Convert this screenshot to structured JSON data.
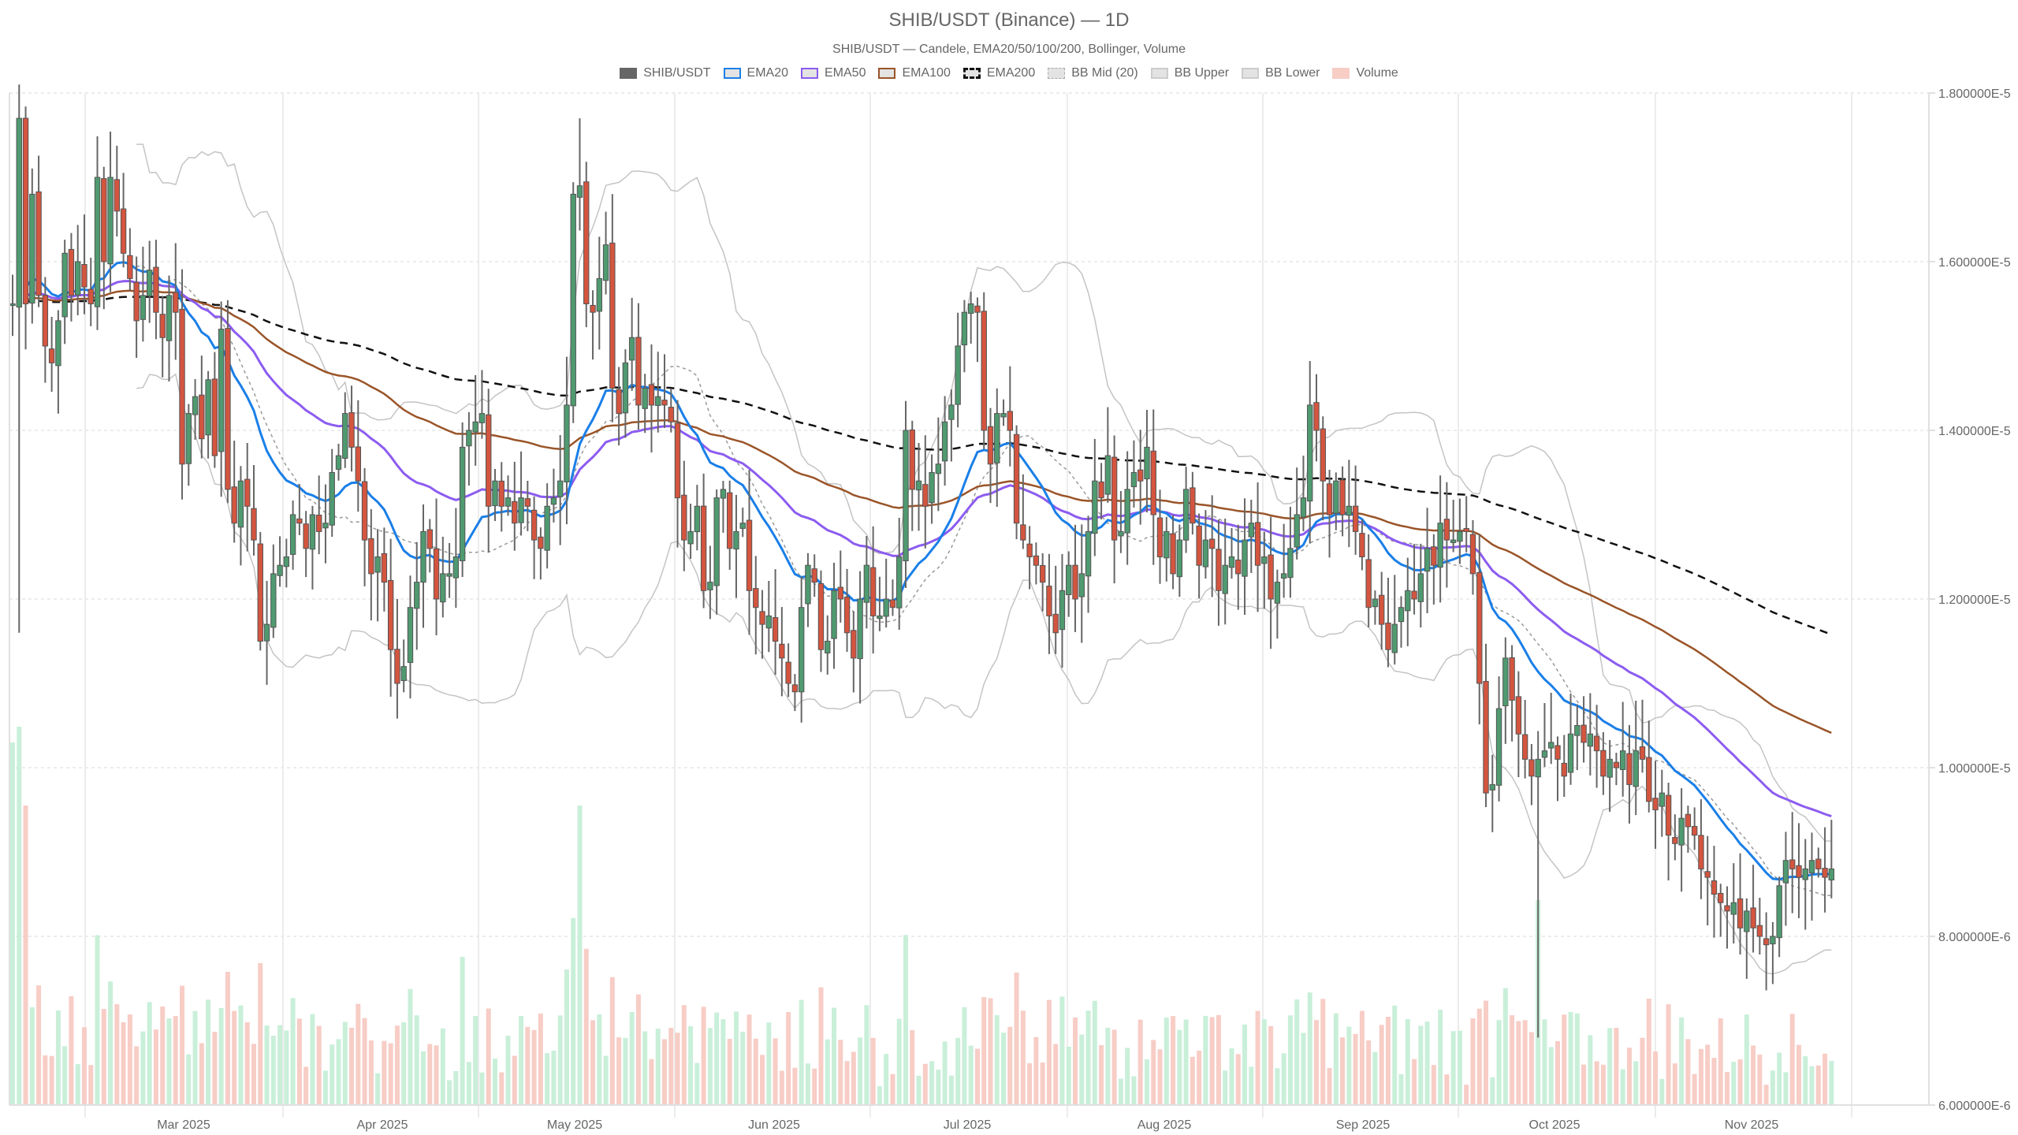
{
  "title": "SHIB/USDT (Binance) — 1D",
  "subtitle": "SHIB/USDT — Candele, EMA20/50/100/200, Bollinger, Volume",
  "legend": [
    {
      "label": "SHIB/USDT",
      "style": "solid-fill",
      "fill": "#666666",
      "border": "#666666"
    },
    {
      "label": "EMA20",
      "style": "solid",
      "fill": "#e3e3e3",
      "border": "#1a7fe8"
    },
    {
      "label": "EMA50",
      "style": "solid",
      "fill": "#e3e3e3",
      "border": "#8c5cf0"
    },
    {
      "label": "EMA100",
      "style": "solid",
      "fill": "#e3e3e3",
      "border": "#9a5428"
    },
    {
      "label": "EMA200",
      "style": "dashed",
      "fill": "#e3e3e3",
      "border": "#111111"
    },
    {
      "label": "BB Mid (20)",
      "style": "dotted",
      "fill": "#e3e3e3",
      "border": "#aaaaaa"
    },
    {
      "label": "BB Upper",
      "style": "solid",
      "fill": "#e3e3e3",
      "border": "#cccccc"
    },
    {
      "label": "BB Lower",
      "style": "solid",
      "fill": "#e3e3e3",
      "border": "#cccccc"
    },
    {
      "label": "Volume",
      "style": "solid-fill",
      "fill": "#f7cdc6",
      "border": "#f7cdc6"
    }
  ],
  "colors": {
    "up": "#4f9a70",
    "down": "#d4553f",
    "wick": "#666666",
    "ema20": "#1a7fe8",
    "ema50": "#8c5cf0",
    "ema100": "#9a5428",
    "ema200": "#111111",
    "bb_mid": "#999999",
    "bb_band": "#c4c4c4",
    "vol_up": "#c9efd9",
    "vol_down": "#f7cdc6",
    "grid": "#e0e0e0",
    "axis_text": "#666666"
  },
  "chart_data": {
    "type": "candlestick",
    "title": "SHIB/USDT (Binance) — 1D",
    "subtitle": "SHIB/USDT — Candele, EMA20/50/100/200, Bollinger, Volume",
    "xlabel": "",
    "ylabel": "",
    "y_axis_position": "right",
    "ylim": [
      6e-06,
      1.8e-05
    ],
    "y_ticks": [
      "1.800000E-5",
      "1.600000E-5",
      "1.400000E-5",
      "1.200000E-5",
      "1.000000E-5",
      "8.000000E-6",
      "6.000000E-6"
    ],
    "y_tick_values": [
      1.8e-05,
      1.6e-05,
      1.4e-05,
      1.2e-05,
      1e-05,
      8e-06,
      6e-06
    ],
    "x_ticks": [
      "Mar 2025",
      "Apr 2025",
      "May 2025",
      "Jun 2025",
      "Jul 2025",
      "Aug 2025",
      "Sep 2025",
      "Oct 2025",
      "Nov 2025"
    ],
    "x_range": [
      "2025-02-16",
      "2025-11-20"
    ],
    "grid": true,
    "legend_position": "top",
    "series_names": [
      "SHIB/USDT",
      "EMA20",
      "EMA50",
      "EMA100",
      "EMA200",
      "BB Mid (20)",
      "BB Upper",
      "BB Lower",
      "Volume"
    ],
    "start_date": "2025-02-16",
    "closes_e6": [
      15.5,
      17.7,
      15.5,
      16.8,
      15.6,
      15.0,
      14.8,
      15.3,
      16.1,
      15.6,
      16.0,
      15.7,
      15.5,
      17.0,
      16.0,
      17.0,
      16.6,
      16.1,
      15.8,
      15.3,
      15.6,
      15.9,
      15.4,
      15.1,
      15.6,
      15.4,
      13.6,
      14.2,
      14.4,
      13.9,
      14.6,
      13.7,
      15.2,
      13.3,
      12.9,
      13.4,
      13.1,
      12.7,
      11.5,
      11.7,
      12.3,
      12.4,
      12.5,
      13.0,
      12.9,
      12.6,
      13.0,
      12.8,
      12.9,
      13.5,
      13.7,
      14.2,
      13.8,
      13.4,
      12.7,
      12.3,
      12.5,
      12.2,
      11.4,
      11.0,
      11.2,
      11.9,
      12.2,
      12.8,
      12.6,
      12.0,
      12.3,
      12.3,
      12.5,
      13.8,
      14.0,
      14.1,
      14.2,
      13.1,
      13.4,
      13.1,
      13.2,
      12.9,
      13.2,
      13.1,
      12.7,
      12.6,
      13.1,
      13.2,
      13.4,
      14.3,
      16.8,
      16.9,
      15.5,
      15.4,
      15.8,
      16.2,
      14.5,
      14.2,
      14.8,
      15.1,
      14.3,
      14.5,
      14.3,
      14.4,
      14.3,
      14.1,
      13.2,
      12.7,
      12.8,
      13.1,
      12.1,
      12.2,
      13.2,
      13.3,
      12.6,
      12.8,
      12.9,
      12.1,
      11.9,
      11.7,
      11.8,
      11.5,
      11.3,
      11.0,
      10.9,
      11.9,
      12.4,
      12.2,
      11.4,
      11.5,
      12.1,
      12.0,
      11.6,
      11.3,
      12.0,
      12.4,
      11.8,
      11.8,
      12.0,
      11.9,
      12.5,
      14.0,
      13.3,
      13.4,
      13.1,
      13.5,
      13.6,
      14.1,
      14.3,
      15.0,
      15.4,
      15.5,
      15.4,
      14.0,
      13.6,
      14.2,
      14.2,
      14.0,
      12.9,
      12.7,
      12.5,
      12.4,
      12.2,
      11.8,
      11.6,
      12.1,
      12.4,
      12.0,
      12.3,
      12.8,
      13.4,
      13.2,
      13.7,
      12.7,
      12.8,
      13.3,
      13.5,
      13.4,
      13.8,
      13.0,
      12.5,
      12.8,
      12.3,
      12.7,
      13.3,
      12.9,
      12.4,
      12.7,
      12.6,
      12.1,
      12.4,
      12.5,
      12.3,
      12.7,
      12.9,
      12.4,
      12.5,
      12.0,
      12.2,
      12.3,
      12.6,
      13.0,
      13.2,
      14.3,
      14.0,
      13.4,
      13.0,
      13.4,
      13.0,
      13.1,
      12.8,
      12.5,
      11.9,
      12.0,
      11.7,
      11.4,
      11.7,
      11.9,
      12.1,
      12.0,
      12.3,
      12.6,
      12.4,
      12.9,
      12.7,
      12.7,
      12.8,
      12.8,
      12.3,
      11.0,
      9.7,
      9.8,
      10.7,
      11.3,
      10.8,
      10.4,
      10.1,
      9.9,
      10.1,
      10.2,
      10.3,
      10.1,
      9.9,
      10.4,
      10.5,
      10.3,
      10.4,
      10.2,
      9.9,
      10.1,
      10.0,
      10.2,
      9.8,
      10.2,
      10.1,
      9.6,
      9.5,
      9.7,
      9.2,
      9.1,
      9.4,
      9.3,
      9.2,
      8.8,
      8.7,
      8.5,
      8.4,
      8.3,
      8.4,
      8.1,
      8.3,
      8.1,
      8.0,
      7.9,
      8.0,
      8.6,
      8.9,
      8.8,
      8.7,
      8.8,
      8.9,
      8.8,
      8.7,
      8.8
    ],
    "volume_scale_note": "Volume bars share the lower price pane (relative heights only)."
  }
}
